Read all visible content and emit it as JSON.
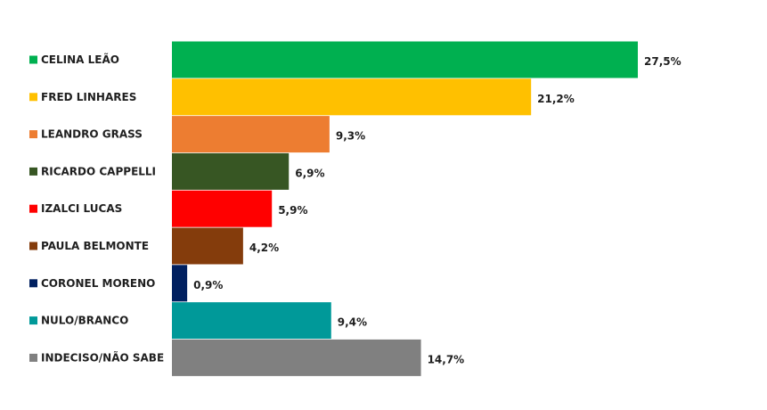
{
  "chart_data": {
    "type": "bar",
    "orientation": "horizontal",
    "categories": [
      "CELINA LEÃO",
      "FRED LINHARES",
      "LEANDRO GRASS",
      "RICARDO CAPPELLI",
      "IZALCI LUCAS",
      "PAULA BELMONTE",
      "CORONEL MORENO",
      "NULO/BRANCO",
      "INDECISO/NÃO SABE"
    ],
    "values": [
      27.5,
      21.2,
      9.3,
      6.9,
      5.9,
      4.2,
      0.9,
      9.4,
      14.7
    ],
    "value_labels": [
      "27,5%",
      "21,2%",
      "9,3%",
      "6,9%",
      "5,9%",
      "4,2%",
      "0,9%",
      "9,4%",
      "14,7%"
    ],
    "colors": [
      "#00b050",
      "#ffc000",
      "#ed7d31",
      "#375623",
      "#ff0000",
      "#843c0c",
      "#002060",
      "#009999",
      "#808080"
    ],
    "title": "",
    "xlabel": "",
    "ylabel": "",
    "xlim": [
      0,
      27.5
    ],
    "grid": false,
    "legend": "left"
  }
}
